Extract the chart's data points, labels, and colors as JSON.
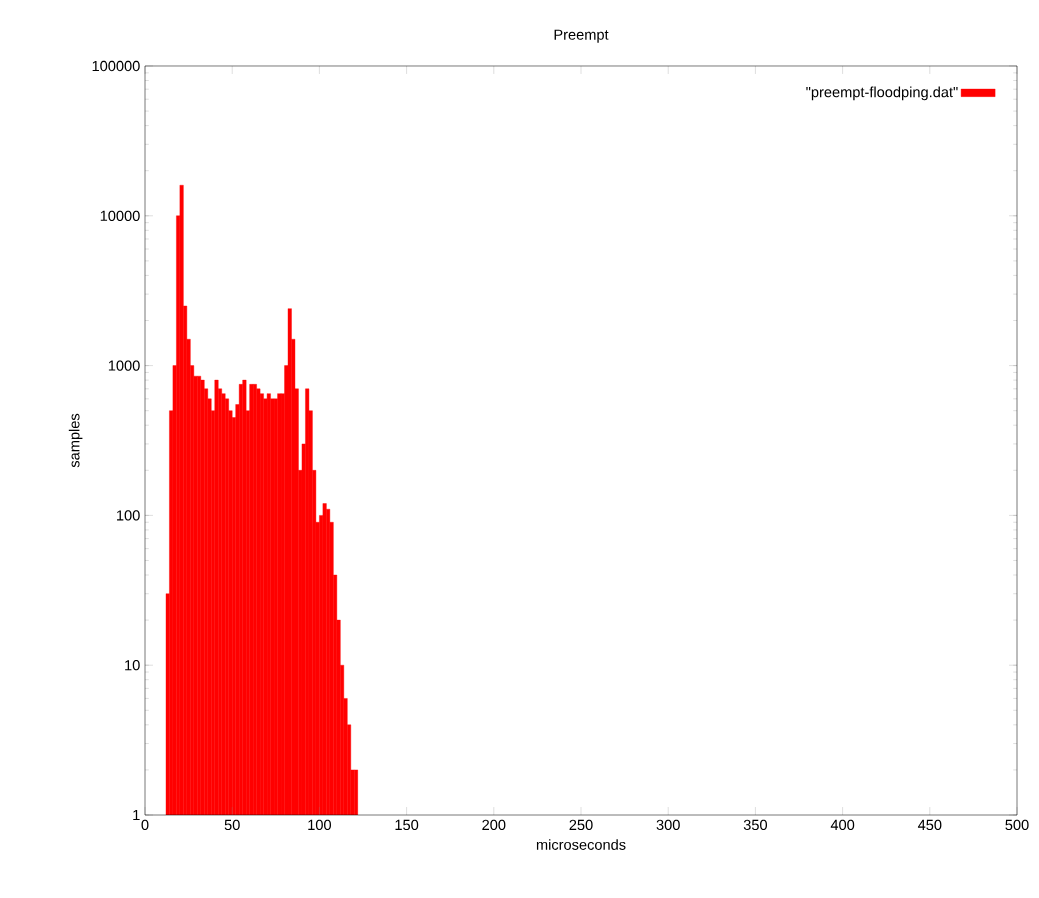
{
  "chart_data": {
    "type": "histogram",
    "title": "Preempt",
    "xlabel": "microseconds",
    "ylabel": "samples",
    "bins": [
      12,
      14,
      16,
      18,
      20,
      22,
      24,
      26,
      28,
      30,
      32,
      34,
      36,
      38,
      40,
      42,
      44,
      46,
      48,
      50,
      52,
      54,
      56,
      58,
      60,
      62,
      64,
      66,
      68,
      70,
      72,
      74,
      76,
      78,
      80,
      82,
      84,
      86,
      88,
      90,
      92,
      94,
      96,
      98,
      100,
      102,
      104,
      106,
      108,
      110,
      112,
      114,
      116,
      118,
      120,
      122
    ],
    "series": [
      {
        "name": "\"preempt-floodping.dat\"",
        "color": "#ff0000",
        "values": [
          30,
          500,
          1000,
          10000,
          16000,
          2500,
          1500,
          1000,
          850,
          850,
          800,
          700,
          600,
          500,
          800,
          700,
          650,
          600,
          500,
          450,
          550,
          750,
          800,
          500,
          750,
          750,
          700,
          650,
          600,
          650,
          600,
          600,
          650,
          650,
          1000,
          2400,
          1500,
          700,
          200,
          300,
          700,
          500,
          200,
          90,
          100,
          120,
          110,
          90,
          40,
          20,
          10,
          6,
          4,
          2,
          2
        ]
      }
    ],
    "log": "y",
    "xlim": [
      0,
      500
    ],
    "ylim": [
      1,
      100000
    ],
    "xticks": [
      0,
      50,
      100,
      150,
      200,
      250,
      300,
      350,
      400,
      450,
      500
    ],
    "yticks": [
      1,
      10,
      100,
      1000,
      10000,
      100000
    ],
    "grid": false,
    "legend": "top right"
  }
}
